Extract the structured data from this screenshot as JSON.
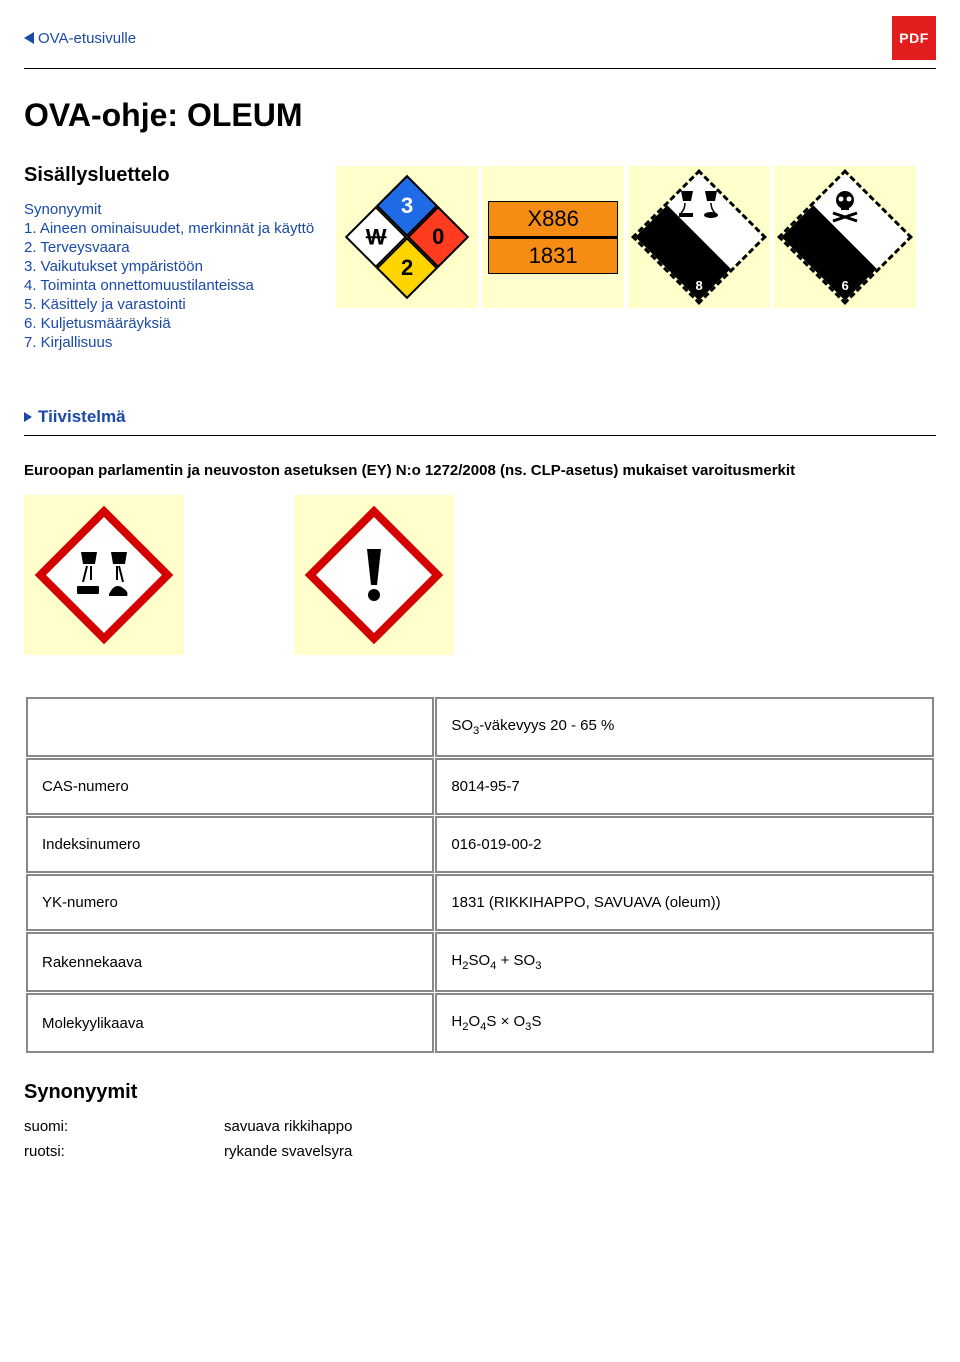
{
  "nav": {
    "back_label": "OVA-etusivulle",
    "pdf_label": "PDF"
  },
  "page": {
    "title": "OVA-ohje: OLEUM",
    "toc_heading": "Sisällysluettelo",
    "summary_label": "Tiivistelmä",
    "clp_heading": "Euroopan parlamentin ja neuvoston asetuksen (EY) N:o 1272/2008 (ns. CLP-asetus) mukaiset varoitusmerkit",
    "synonyms_heading": "Synonyymit"
  },
  "toc": {
    "items": [
      "Synonyymit",
      "1. Aineen ominaisuudet, merkinnät ja käyttö",
      "2. Terveysvaara",
      "3. Vaikutukset ympäristöön",
      "4. Toiminta onnettomuustilanteissa",
      "5. Käsittely ja varastointi",
      "6. Kuljetusmääräyksiä",
      "7. Kirjallisuus"
    ]
  },
  "nfpa": {
    "health": "3",
    "fire": "0",
    "reactivity": "2",
    "special": "W",
    "colors": {
      "red": "#ff3b1f",
      "yellow": "#ffd400",
      "blue": "#1e6be5",
      "white": "#ffffff"
    }
  },
  "idplate": {
    "hazard_id": "X886",
    "un_number": "1831",
    "bg": "#f58d14"
  },
  "adr": {
    "corrosive_class": "8",
    "toxic_class": "6"
  },
  "table": {
    "rows": [
      {
        "label": "",
        "value_html": "SO<sub>3</sub>-väkevyys 20 - 65 %"
      },
      {
        "label": "CAS-numero",
        "value_html": "8014-95-7"
      },
      {
        "label": "Indeksinumero",
        "value_html": "016-019-00-2"
      },
      {
        "label": "YK-numero",
        "value_html": "1831 (RIKKIHAPPO, SAVUAVA (oleum))"
      },
      {
        "label": "Rakennekaava",
        "value_html": "H<sub>2</sub>SO<sub>4</sub> + SO<sub>3</sub>"
      },
      {
        "label": "Molekyylikaava",
        "value_html": "H<sub>2</sub>O<sub>4</sub>S × O<sub>3</sub>S"
      }
    ]
  },
  "synonyms": {
    "rows": [
      {
        "lang": "suomi:",
        "value": "savuava rikkihappo"
      },
      {
        "lang": "ruotsi:",
        "value": "rykande svavelsyra"
      }
    ]
  },
  "colors": {
    "link": "#1a4aa8",
    "pdf_bg": "#e21d1d",
    "hazard_bg": "#ffffcc",
    "clp_border": "#d40000"
  }
}
